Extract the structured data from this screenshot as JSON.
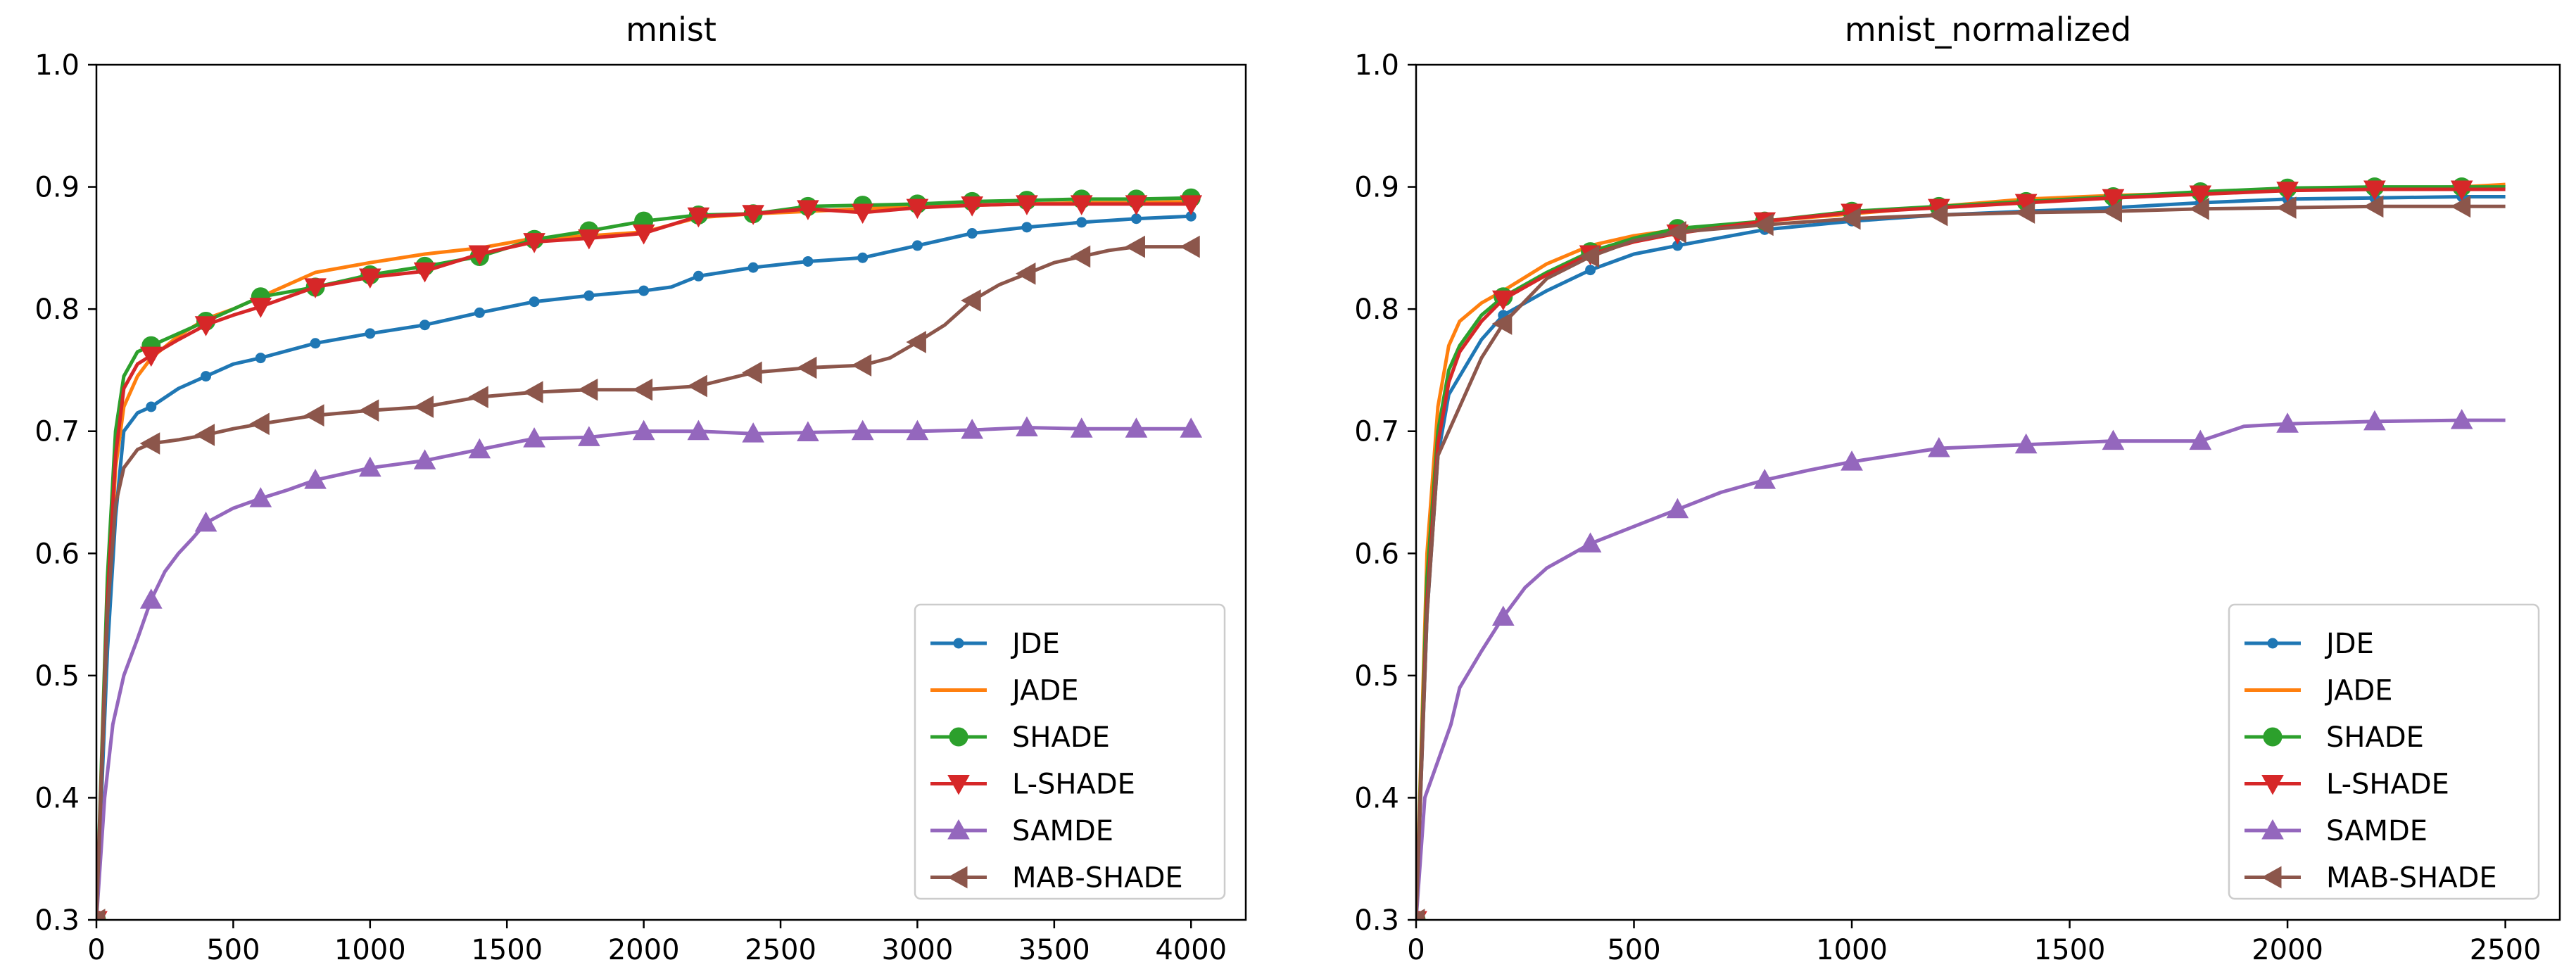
{
  "chart_data": [
    {
      "type": "line",
      "title": "mnist",
      "xlabel": "",
      "ylabel": "",
      "xlim": [
        0,
        4200
      ],
      "ylim": [
        0.3,
        1.0
      ],
      "x_ticks": [
        0,
        500,
        1000,
        1500,
        2000,
        2500,
        3000,
        3500,
        4000
      ],
      "x_tick_labels": [
        "0",
        "500",
        "1000",
        "1500",
        "2000",
        "2500",
        "3000",
        "3500",
        "4000"
      ],
      "y_ticks": [
        0.3,
        0.4,
        0.5,
        0.6,
        0.7,
        0.8,
        0.9,
        1.0
      ],
      "y_tick_labels": [
        "0.3",
        "0.4",
        "0.5",
        "0.6",
        "0.7",
        "0.8",
        "0.9",
        "1.0"
      ],
      "grid": false,
      "legend_position": "lower-right",
      "marker_x": [
        0,
        200,
        400,
        600,
        800,
        1000,
        1200,
        1400,
        1600,
        1800,
        2000,
        2200,
        2400,
        2600,
        2800,
        3000,
        3200,
        3400,
        3600,
        3800,
        4000
      ],
      "series": [
        {
          "name": "JDE",
          "color": "#1f77b4",
          "marker": "dot",
          "x": [
            0,
            40,
            70,
            100,
            150,
            200,
            300,
            400,
            500,
            600,
            800,
            1000,
            1200,
            1400,
            1600,
            1800,
            2000,
            2100,
            2200,
            2400,
            2600,
            2800,
            3000,
            3200,
            3400,
            3600,
            3800,
            4000
          ],
          "y": [
            0.3,
            0.52,
            0.63,
            0.7,
            0.715,
            0.72,
            0.735,
            0.745,
            0.755,
            0.76,
            0.772,
            0.78,
            0.787,
            0.797,
            0.806,
            0.811,
            0.815,
            0.818,
            0.827,
            0.834,
            0.839,
            0.842,
            0.852,
            0.862,
            0.867,
            0.871,
            0.874,
            0.876
          ]
        },
        {
          "name": "JADE",
          "color": "#ff7f0e",
          "marker": "none",
          "x": [
            0,
            40,
            70,
            100,
            150,
            200,
            300,
            400,
            500,
            600,
            700,
            800,
            1000,
            1200,
            1400,
            1600,
            1800,
            2000,
            2200,
            2400,
            2600,
            2800,
            3000,
            3200,
            3400,
            3600,
            3800,
            4000
          ],
          "y": [
            0.3,
            0.55,
            0.67,
            0.72,
            0.745,
            0.76,
            0.778,
            0.792,
            0.8,
            0.81,
            0.82,
            0.83,
            0.838,
            0.845,
            0.85,
            0.858,
            0.86,
            0.863,
            0.875,
            0.878,
            0.88,
            0.882,
            0.884,
            0.885,
            0.886,
            0.887,
            0.887,
            0.888
          ]
        },
        {
          "name": "SHADE",
          "color": "#2ca02c",
          "marker": "circle",
          "x": [
            0,
            40,
            70,
            100,
            150,
            200,
            300,
            400,
            500,
            600,
            800,
            1000,
            1200,
            1400,
            1600,
            1800,
            2000,
            2200,
            2400,
            2600,
            2800,
            3000,
            3200,
            3400,
            3600,
            3800,
            4000
          ],
          "y": [
            0.3,
            0.58,
            0.7,
            0.745,
            0.765,
            0.77,
            0.78,
            0.79,
            0.8,
            0.81,
            0.818,
            0.828,
            0.835,
            0.843,
            0.857,
            0.864,
            0.872,
            0.877,
            0.878,
            0.884,
            0.885,
            0.886,
            0.888,
            0.889,
            0.89,
            0.89,
            0.891
          ]
        },
        {
          "name": "L-SHADE",
          "color": "#d62728",
          "marker": "triangle-down",
          "x": [
            0,
            40,
            70,
            100,
            150,
            200,
            300,
            400,
            500,
            600,
            800,
            1000,
            1200,
            1400,
            1600,
            1800,
            2000,
            2200,
            2400,
            2600,
            2800,
            3000,
            3200,
            3400,
            3600,
            3800,
            4000
          ],
          "y": [
            0.3,
            0.56,
            0.68,
            0.735,
            0.755,
            0.762,
            0.775,
            0.787,
            0.795,
            0.802,
            0.818,
            0.826,
            0.831,
            0.845,
            0.855,
            0.858,
            0.862,
            0.876,
            0.878,
            0.882,
            0.879,
            0.883,
            0.885,
            0.886,
            0.886,
            0.886,
            0.886
          ]
        },
        {
          "name": "SAMDE",
          "color": "#9467bd",
          "marker": "triangle-up",
          "x": [
            0,
            30,
            60,
            100,
            150,
            200,
            250,
            300,
            350,
            400,
            500,
            600,
            700,
            800,
            900,
            1000,
            1200,
            1400,
            1600,
            1800,
            2000,
            2200,
            2400,
            2600,
            2800,
            3000,
            3200,
            3400,
            3600,
            3800,
            4000
          ],
          "y": [
            0.3,
            0.4,
            0.46,
            0.5,
            0.53,
            0.562,
            0.585,
            0.6,
            0.612,
            0.625,
            0.637,
            0.645,
            0.652,
            0.66,
            0.665,
            0.67,
            0.676,
            0.685,
            0.694,
            0.695,
            0.7,
            0.7,
            0.698,
            0.699,
            0.7,
            0.7,
            0.701,
            0.703,
            0.702,
            0.702,
            0.702
          ]
        },
        {
          "name": "MAB-SHADE",
          "color": "#8c564b",
          "marker": "triangle-left",
          "x": [
            0,
            40,
            70,
            100,
            150,
            200,
            300,
            400,
            500,
            600,
            800,
            1000,
            1200,
            1400,
            1600,
            1800,
            2000,
            2200,
            2400,
            2600,
            2800,
            2900,
            3000,
            3100,
            3200,
            3300,
            3400,
            3500,
            3600,
            3700,
            3800,
            4000
          ],
          "y": [
            0.3,
            0.55,
            0.64,
            0.67,
            0.685,
            0.69,
            0.693,
            0.697,
            0.702,
            0.706,
            0.713,
            0.717,
            0.72,
            0.728,
            0.732,
            0.734,
            0.734,
            0.737,
            0.748,
            0.752,
            0.754,
            0.76,
            0.773,
            0.787,
            0.807,
            0.82,
            0.829,
            0.838,
            0.843,
            0.848,
            0.851,
            0.851
          ]
        }
      ]
    },
    {
      "type": "line",
      "title": "mnist_normalized",
      "xlabel": "",
      "ylabel": "",
      "xlim": [
        0,
        2625
      ],
      "ylim": [
        0.3,
        1.0
      ],
      "x_ticks": [
        0,
        500,
        1000,
        1500,
        2000,
        2500
      ],
      "x_tick_labels": [
        "0",
        "500",
        "1000",
        "1500",
        "2000",
        "2500"
      ],
      "y_ticks": [
        0.3,
        0.4,
        0.5,
        0.6,
        0.7,
        0.8,
        0.9,
        1.0
      ],
      "y_tick_labels": [
        "0.3",
        "0.4",
        "0.5",
        "0.6",
        "0.7",
        "0.8",
        "0.9",
        "1.0"
      ],
      "grid": false,
      "legend_position": "lower-right",
      "marker_x": [
        0,
        200,
        400,
        600,
        800,
        1000,
        1200,
        1400,
        1600,
        1800,
        2000,
        2200,
        2400
      ],
      "series": [
        {
          "name": "JDE",
          "color": "#1f77b4",
          "marker": "dot",
          "x": [
            0,
            25,
            50,
            75,
            100,
            150,
            200,
            300,
            400,
            500,
            600,
            800,
            1000,
            1200,
            1400,
            1600,
            1800,
            2000,
            2200,
            2400,
            2500
          ],
          "y": [
            0.3,
            0.55,
            0.68,
            0.73,
            0.745,
            0.775,
            0.795,
            0.815,
            0.832,
            0.845,
            0.852,
            0.865,
            0.872,
            0.877,
            0.88,
            0.883,
            0.887,
            0.89,
            0.891,
            0.892,
            0.892
          ]
        },
        {
          "name": "JADE",
          "color": "#ff7f0e",
          "marker": "none",
          "x": [
            0,
            25,
            50,
            75,
            100,
            150,
            200,
            300,
            400,
            500,
            600,
            800,
            1000,
            1200,
            1400,
            1600,
            1800,
            2000,
            2200,
            2400,
            2500
          ],
          "y": [
            0.3,
            0.6,
            0.72,
            0.77,
            0.79,
            0.805,
            0.815,
            0.837,
            0.852,
            0.86,
            0.865,
            0.872,
            0.878,
            0.884,
            0.89,
            0.893,
            0.895,
            0.897,
            0.899,
            0.9,
            0.902
          ]
        },
        {
          "name": "SHADE",
          "color": "#2ca02c",
          "marker": "circle",
          "x": [
            0,
            25,
            50,
            75,
            100,
            150,
            200,
            300,
            400,
            500,
            600,
            800,
            1000,
            1200,
            1400,
            1600,
            1800,
            2000,
            2200,
            2400,
            2500
          ],
          "y": [
            0.3,
            0.58,
            0.7,
            0.75,
            0.77,
            0.795,
            0.81,
            0.83,
            0.847,
            0.858,
            0.866,
            0.872,
            0.88,
            0.884,
            0.888,
            0.892,
            0.896,
            0.899,
            0.9,
            0.9,
            0.9
          ]
        },
        {
          "name": "L-SHADE",
          "color": "#d62728",
          "marker": "triangle-down",
          "x": [
            0,
            25,
            50,
            75,
            100,
            150,
            200,
            300,
            400,
            500,
            600,
            800,
            1000,
            1200,
            1400,
            1600,
            1800,
            2000,
            2200,
            2400,
            2500
          ],
          "y": [
            0.3,
            0.56,
            0.69,
            0.74,
            0.765,
            0.79,
            0.808,
            0.828,
            0.845,
            0.855,
            0.862,
            0.872,
            0.879,
            0.883,
            0.887,
            0.891,
            0.894,
            0.897,
            0.898,
            0.898,
            0.898
          ]
        },
        {
          "name": "SAMDE",
          "color": "#9467bd",
          "marker": "triangle-up",
          "x": [
            0,
            20,
            50,
            80,
            100,
            150,
            200,
            250,
            300,
            350,
            400,
            500,
            600,
            700,
            800,
            900,
            1000,
            1200,
            1400,
            1600,
            1800,
            1900,
            2000,
            2200,
            2400,
            2500
          ],
          "y": [
            0.3,
            0.4,
            0.43,
            0.46,
            0.49,
            0.52,
            0.548,
            0.572,
            0.588,
            0.598,
            0.608,
            0.622,
            0.636,
            0.65,
            0.66,
            0.668,
            0.675,
            0.686,
            0.689,
            0.692,
            0.692,
            0.704,
            0.706,
            0.708,
            0.709,
            0.709
          ]
        },
        {
          "name": "MAB-SHADE",
          "color": "#8c564b",
          "marker": "triangle-left",
          "x": [
            0,
            25,
            50,
            75,
            100,
            150,
            200,
            300,
            400,
            500,
            600,
            800,
            1000,
            1200,
            1400,
            1600,
            1800,
            2000,
            2200,
            2400,
            2500
          ],
          "y": [
            0.3,
            0.55,
            0.68,
            0.7,
            0.72,
            0.76,
            0.788,
            0.825,
            0.843,
            0.856,
            0.863,
            0.869,
            0.874,
            0.877,
            0.879,
            0.88,
            0.882,
            0.883,
            0.884,
            0.884,
            0.884
          ]
        }
      ]
    }
  ]
}
